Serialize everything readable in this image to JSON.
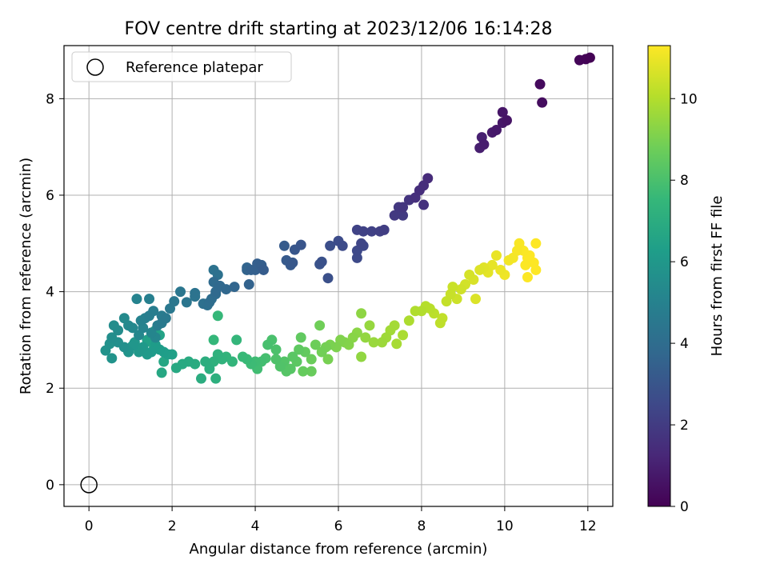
{
  "chart_data": {
    "type": "scatter",
    "title": "FOV centre drift starting at 2023/12/06 16:14:28",
    "xlabel": "Angular distance from reference (arcmin)",
    "ylabel": "Rotation from reference (arcmin)",
    "xlim": [
      -0.6,
      12.6
    ],
    "ylim": [
      -0.45,
      9.1
    ],
    "xticks": [
      0,
      2,
      4,
      6,
      8,
      10,
      12
    ],
    "yticks": [
      0,
      2,
      4,
      6,
      8
    ],
    "grid": true,
    "legend": {
      "location": "upper left",
      "entries": [
        "Reference platepar"
      ]
    },
    "reference_point": {
      "x": 0,
      "y": 0
    },
    "colorbar": {
      "label": "Hours from first FF file",
      "range": [
        0,
        11.3
      ],
      "ticks": [
        0,
        2,
        4,
        6,
        8,
        10
      ],
      "colormap": "viridis"
    },
    "colormap_stops": [
      "#440154",
      "#482878",
      "#3e4989",
      "#31688e",
      "#26828e",
      "#1f9e89",
      "#35b779",
      "#6ece58",
      "#b5de2b",
      "#fde725"
    ],
    "series": [
      {
        "points": [
          [
            12.05,
            8.85,
            0.05
          ],
          [
            11.95,
            8.82,
            0.1
          ],
          [
            11.8,
            8.8,
            0.15
          ],
          [
            10.85,
            8.3,
            0.3
          ],
          [
            10.9,
            7.92,
            0.4
          ],
          [
            10.05,
            7.55,
            0.6
          ],
          [
            9.95,
            7.72,
            0.65
          ],
          [
            9.95,
            7.5,
            0.7
          ],
          [
            9.8,
            7.35,
            0.75
          ],
          [
            9.7,
            7.3,
            0.8
          ],
          [
            9.5,
            7.05,
            0.9
          ],
          [
            9.4,
            6.98,
            0.95
          ],
          [
            9.45,
            7.2,
            1.0
          ],
          [
            8.15,
            6.35,
            1.4
          ],
          [
            8.05,
            6.2,
            1.45
          ],
          [
            7.95,
            6.1,
            1.5
          ],
          [
            7.85,
            5.95,
            1.55
          ],
          [
            8.05,
            5.8,
            1.6
          ],
          [
            7.7,
            5.9,
            1.7
          ],
          [
            7.55,
            5.75,
            1.8
          ],
          [
            7.45,
            5.75,
            1.85
          ],
          [
            7.35,
            5.58,
            1.9
          ],
          [
            7.55,
            5.58,
            1.95
          ],
          [
            7.1,
            5.28,
            2.1
          ],
          [
            7.0,
            5.25,
            2.15
          ],
          [
            6.8,
            5.25,
            2.2
          ],
          [
            6.6,
            5.25,
            2.25
          ],
          [
            6.45,
            5.28,
            2.3
          ],
          [
            6.55,
            5.0,
            2.4
          ],
          [
            6.6,
            4.95,
            2.45
          ],
          [
            6.45,
            4.85,
            2.5
          ],
          [
            6.45,
            4.7,
            2.55
          ],
          [
            6.1,
            4.95,
            2.6
          ],
          [
            6.0,
            5.05,
            2.65
          ],
          [
            5.8,
            4.95,
            2.7
          ],
          [
            5.75,
            4.28,
            2.8
          ],
          [
            5.6,
            4.62,
            2.85
          ],
          [
            5.55,
            4.57,
            2.9
          ],
          [
            5.1,
            4.97,
            3.0
          ],
          [
            4.95,
            4.87,
            3.05
          ],
          [
            4.9,
            4.6,
            3.1
          ],
          [
            4.85,
            4.55,
            3.15
          ],
          [
            4.75,
            4.65,
            3.2
          ],
          [
            4.7,
            4.95,
            3.25
          ],
          [
            4.2,
            4.45,
            3.3
          ],
          [
            4.15,
            4.55,
            3.35
          ],
          [
            4.05,
            4.58,
            3.4
          ],
          [
            4.0,
            4.45,
            3.45
          ],
          [
            3.9,
            4.45,
            3.5
          ],
          [
            3.85,
            4.15,
            3.55
          ],
          [
            3.8,
            4.45,
            3.6
          ],
          [
            3.8,
            4.5,
            3.65
          ],
          [
            3.5,
            4.1,
            3.7
          ],
          [
            3.3,
            4.05,
            3.75
          ],
          [
            3.15,
            4.12,
            3.8
          ],
          [
            3.05,
            4.0,
            3.85
          ],
          [
            3.0,
            4.2,
            3.9
          ],
          [
            3.05,
            3.95,
            3.95
          ],
          [
            2.95,
            3.85,
            4.0
          ],
          [
            2.9,
            3.78,
            4.05
          ],
          [
            2.85,
            3.72,
            4.1
          ],
          [
            2.75,
            3.75,
            4.15
          ],
          [
            3.1,
            4.35,
            4.2
          ],
          [
            3.0,
            4.45,
            4.25
          ],
          [
            2.55,
            3.97,
            4.3
          ],
          [
            2.55,
            3.9,
            4.35
          ],
          [
            2.35,
            3.78,
            4.4
          ],
          [
            2.2,
            4.0,
            4.45
          ],
          [
            2.05,
            3.8,
            4.5
          ],
          [
            1.95,
            3.65,
            4.55
          ],
          [
            1.85,
            3.45,
            4.6
          ],
          [
            1.75,
            3.35,
            4.65
          ],
          [
            1.75,
            3.5,
            4.7
          ],
          [
            1.65,
            3.3,
            4.75
          ],
          [
            1.55,
            3.6,
            4.8
          ],
          [
            1.45,
            3.5,
            4.85
          ],
          [
            1.45,
            3.85,
            4.9
          ],
          [
            1.35,
            3.45,
            4.95
          ],
          [
            1.25,
            3.4,
            5.0
          ],
          [
            1.15,
            3.85,
            5.05
          ],
          [
            1.3,
            3.25,
            5.1
          ],
          [
            1.5,
            3.15,
            5.15
          ],
          [
            1.6,
            3.05,
            5.2
          ],
          [
            1.2,
            3.1,
            5.25
          ],
          [
            1.05,
            3.25,
            5.3
          ],
          [
            0.95,
            3.3,
            5.35
          ],
          [
            0.85,
            3.45,
            5.4
          ],
          [
            0.7,
            3.2,
            5.45
          ],
          [
            0.6,
            3.3,
            5.5
          ],
          [
            0.55,
            3.05,
            5.55
          ],
          [
            0.7,
            2.95,
            5.6
          ],
          [
            0.85,
            2.85,
            5.65
          ],
          [
            0.5,
            2.92,
            5.7
          ],
          [
            0.4,
            2.78,
            5.75
          ],
          [
            0.55,
            2.62,
            5.8
          ],
          [
            0.95,
            2.75,
            5.85
          ],
          [
            1.05,
            2.88,
            5.9
          ],
          [
            1.1,
            2.95,
            5.95
          ],
          [
            1.2,
            2.75,
            6.0
          ],
          [
            1.3,
            2.85,
            6.05
          ],
          [
            1.4,
            2.7,
            6.1
          ],
          [
            1.5,
            2.75,
            6.15
          ],
          [
            1.6,
            2.9,
            6.2
          ],
          [
            1.7,
            2.8,
            6.25
          ],
          [
            1.8,
            2.75,
            6.3
          ],
          [
            1.9,
            2.7,
            6.35
          ],
          [
            2.0,
            2.7,
            6.4
          ],
          [
            1.4,
            3.0,
            6.45
          ],
          [
            1.6,
            3.2,
            6.5
          ],
          [
            1.7,
            3.1,
            6.55
          ],
          [
            1.5,
            2.95,
            6.6
          ],
          [
            1.2,
            2.8,
            6.65
          ],
          [
            1.8,
            2.55,
            6.7
          ],
          [
            1.75,
            2.32,
            6.75
          ],
          [
            2.1,
            2.42,
            6.8
          ],
          [
            2.25,
            2.5,
            6.85
          ],
          [
            2.4,
            2.55,
            6.9
          ],
          [
            2.55,
            2.5,
            6.95
          ],
          [
            2.7,
            2.2,
            7.0
          ],
          [
            2.8,
            2.55,
            7.05
          ],
          [
            2.9,
            2.4,
            7.1
          ],
          [
            3.05,
            2.2,
            7.15
          ],
          [
            3.0,
            2.55,
            7.2
          ],
          [
            3.1,
            2.7,
            7.25
          ],
          [
            3.2,
            2.6,
            7.3
          ],
          [
            3.3,
            2.65,
            7.35
          ],
          [
            3.45,
            2.55,
            7.4
          ],
          [
            3.55,
            3.0,
            7.45
          ],
          [
            3.0,
            3.0,
            7.5
          ],
          [
            3.1,
            3.5,
            7.55
          ],
          [
            3.7,
            2.65,
            7.6
          ],
          [
            3.8,
            2.6,
            7.65
          ],
          [
            3.9,
            2.5,
            7.7
          ],
          [
            4.0,
            2.55,
            7.75
          ],
          [
            4.05,
            2.4,
            7.8
          ],
          [
            4.15,
            2.55,
            7.85
          ],
          [
            4.25,
            2.62,
            7.9
          ],
          [
            4.3,
            2.9,
            7.95
          ],
          [
            4.4,
            3.0,
            8.0
          ],
          [
            4.5,
            2.8,
            8.05
          ],
          [
            4.5,
            2.6,
            8.1
          ],
          [
            4.6,
            2.45,
            8.15
          ],
          [
            4.7,
            2.55,
            8.2
          ],
          [
            4.75,
            2.35,
            8.25
          ],
          [
            4.85,
            2.4,
            8.3
          ],
          [
            4.9,
            2.65,
            8.35
          ],
          [
            5.0,
            2.55,
            8.4
          ],
          [
            5.05,
            2.8,
            8.45
          ],
          [
            5.1,
            3.05,
            8.5
          ],
          [
            5.2,
            2.75,
            8.55
          ],
          [
            5.15,
            2.35,
            8.6
          ],
          [
            5.35,
            2.35,
            8.65
          ],
          [
            5.35,
            2.6,
            8.7
          ],
          [
            5.45,
            2.9,
            8.75
          ],
          [
            5.55,
            3.3,
            8.8
          ],
          [
            5.6,
            2.75,
            8.85
          ],
          [
            5.7,
            2.85,
            8.9
          ],
          [
            5.75,
            2.6,
            8.95
          ],
          [
            5.8,
            2.9,
            9.0
          ],
          [
            5.95,
            2.85,
            9.05
          ],
          [
            6.05,
            3.0,
            9.1
          ],
          [
            6.15,
            2.95,
            9.15
          ],
          [
            6.25,
            2.9,
            9.2
          ],
          [
            6.35,
            3.05,
            9.25
          ],
          [
            6.45,
            3.15,
            9.3
          ],
          [
            6.55,
            3.55,
            9.35
          ],
          [
            6.55,
            2.65,
            9.4
          ],
          [
            6.65,
            3.05,
            9.45
          ],
          [
            6.75,
            3.3,
            9.5
          ],
          [
            6.85,
            2.95,
            9.55
          ],
          [
            7.05,
            2.95,
            9.6
          ],
          [
            7.15,
            3.05,
            9.65
          ],
          [
            7.25,
            3.2,
            9.7
          ],
          [
            7.35,
            3.3,
            9.75
          ],
          [
            7.4,
            2.92,
            9.8
          ],
          [
            7.55,
            3.1,
            9.85
          ],
          [
            7.7,
            3.4,
            9.9
          ],
          [
            7.85,
            3.6,
            9.95
          ],
          [
            8.0,
            3.6,
            10.0
          ],
          [
            8.1,
            3.7,
            10.05
          ],
          [
            8.2,
            3.65,
            10.1
          ],
          [
            8.3,
            3.55,
            10.15
          ],
          [
            8.45,
            3.35,
            10.2
          ],
          [
            8.5,
            3.45,
            10.25
          ],
          [
            8.6,
            3.8,
            10.3
          ],
          [
            8.7,
            3.95,
            10.35
          ],
          [
            8.75,
            4.1,
            10.4
          ],
          [
            8.85,
            3.85,
            10.45
          ],
          [
            8.95,
            4.05,
            10.5
          ],
          [
            9.05,
            4.15,
            10.55
          ],
          [
            9.15,
            4.35,
            10.6
          ],
          [
            9.25,
            4.25,
            10.65
          ],
          [
            9.3,
            3.85,
            10.7
          ],
          [
            9.4,
            4.45,
            10.75
          ],
          [
            9.5,
            4.5,
            10.8
          ],
          [
            9.6,
            4.4,
            10.85
          ],
          [
            9.7,
            4.55,
            10.9
          ],
          [
            9.8,
            4.75,
            10.95
          ],
          [
            9.9,
            4.45,
            11.0
          ],
          [
            10.0,
            4.35,
            11.05
          ],
          [
            10.1,
            4.65,
            11.1
          ],
          [
            10.2,
            4.7,
            11.15
          ],
          [
            10.3,
            4.85,
            11.2
          ],
          [
            10.35,
            5.0,
            11.22
          ],
          [
            10.45,
            4.85,
            11.24
          ],
          [
            10.5,
            4.55,
            11.26
          ],
          [
            10.55,
            4.7,
            11.28
          ],
          [
            10.55,
            4.3,
            11.29
          ],
          [
            10.6,
            4.75,
            11.3
          ],
          [
            10.7,
            4.6,
            11.3
          ],
          [
            10.75,
            5.0,
            11.3
          ],
          [
            10.75,
            4.45,
            11.3
          ]
        ]
      }
    ]
  }
}
